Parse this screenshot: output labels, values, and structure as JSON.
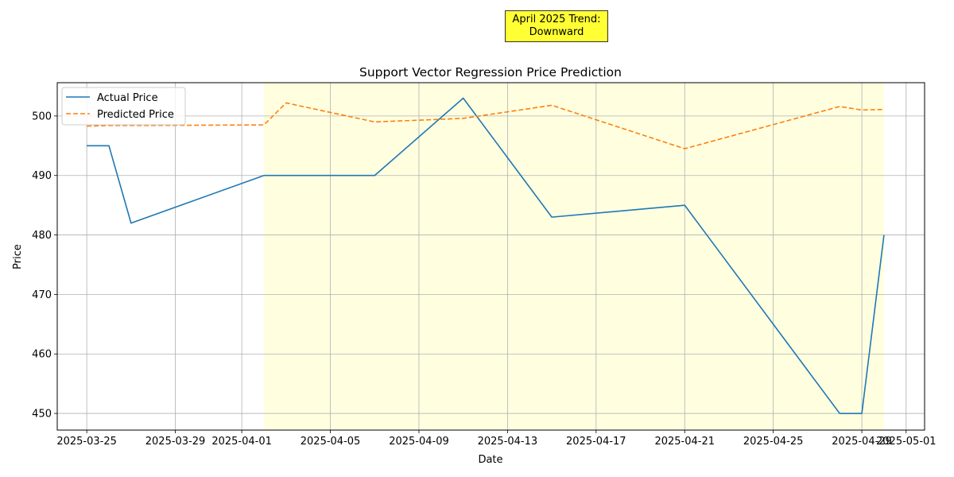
{
  "chart_data": {
    "type": "line",
    "title": "Support Vector Regression Price Prediction",
    "xlabel": "Date",
    "ylabel": "Price",
    "xlim": [
      "2025-03-23T16:00",
      "2025-05-01T20:00"
    ],
    "ylim": [
      447.2,
      505.6
    ],
    "x_ticks": [
      "2025-03-25",
      "2025-03-29",
      "2025-04-01",
      "2025-04-05",
      "2025-04-09",
      "2025-04-13",
      "2025-04-17",
      "2025-04-21",
      "2025-04-25",
      "2025-04-29",
      "2025-05-01"
    ],
    "y_ticks": [
      450,
      460,
      470,
      480,
      490,
      500
    ],
    "grid": true,
    "legend_position": "upper left",
    "highlight_range": [
      "2025-04-02",
      "2025-04-30"
    ],
    "highlight_color": "#ffffe0",
    "annotation": {
      "line1": "April 2025 Trend:",
      "line2": "Downward",
      "color": "#ffff33"
    },
    "series": [
      {
        "name": "Actual Price",
        "style": "solid",
        "color": "#1f77b4",
        "points": [
          [
            "2025-03-25",
            495
          ],
          [
            "2025-03-26",
            495
          ],
          [
            "2025-03-27",
            482
          ],
          [
            "2025-04-02",
            490
          ],
          [
            "2025-04-07",
            490
          ],
          [
            "2025-04-11",
            503
          ],
          [
            "2025-04-15",
            483
          ],
          [
            "2025-04-21",
            485
          ],
          [
            "2025-04-28",
            450
          ],
          [
            "2025-04-29",
            450
          ],
          [
            "2025-04-30",
            480
          ]
        ]
      },
      {
        "name": "Predicted Price",
        "style": "dashed",
        "color": "#ff7f0e",
        "points": [
          [
            "2025-03-25",
            498.3
          ],
          [
            "2025-03-26",
            498.4
          ],
          [
            "2025-03-27",
            498.4
          ],
          [
            "2025-04-02",
            498.5
          ],
          [
            "2025-04-03",
            502.2
          ],
          [
            "2025-04-07",
            499.0
          ],
          [
            "2025-04-11",
            499.6
          ],
          [
            "2025-04-15",
            501.8
          ],
          [
            "2025-04-21",
            494.5
          ],
          [
            "2025-04-28",
            501.6
          ],
          [
            "2025-04-29",
            501.0
          ],
          [
            "2025-04-30",
            501.1
          ]
        ]
      }
    ]
  }
}
